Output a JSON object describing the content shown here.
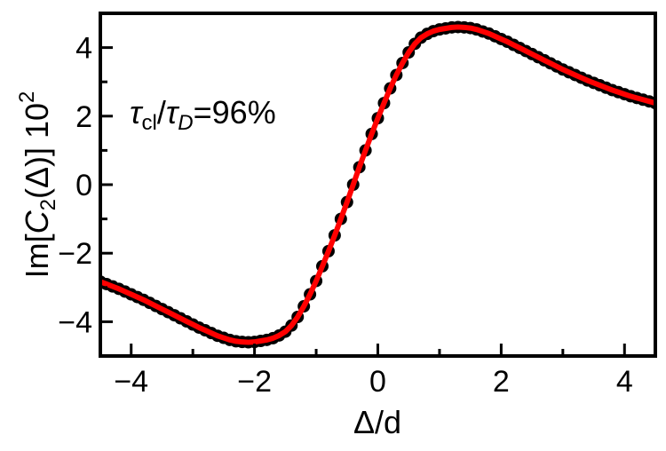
{
  "chart_data": {
    "type": "line",
    "xlabel": "Δ/d",
    "ylabel": {
      "prefix": "Im[",
      "var": "C",
      "sub": "2",
      "arg": "(Δ)] 10",
      "sup": "2"
    },
    "annotation": {
      "t1": "τ",
      "s1": "cl",
      "slash": "/",
      "t2": "τ",
      "s2": "D",
      "rest": "=96%"
    },
    "xlim": [
      -4.5,
      4.5
    ],
    "ylim": [
      -5,
      5
    ],
    "x_ticks": [
      -4,
      -2,
      0,
      2,
      4
    ],
    "x_tick_labels": [
      "−4",
      "−2",
      "0",
      "2",
      "4"
    ],
    "y_ticks": [
      -4,
      -2,
      0,
      2,
      4
    ],
    "y_tick_labels": [
      "−4",
      "−2",
      "0",
      "2",
      "4"
    ],
    "grid": false,
    "colors": {
      "markers": "#000000",
      "fit_line": "#ff0000",
      "axes": "#000000"
    },
    "series": [
      {
        "style": "markers",
        "x": [
          -4.5,
          -4.4,
          -4.3,
          -4.2,
          -4.1,
          -4.0,
          -3.9,
          -3.8,
          -3.7,
          -3.6,
          -3.5,
          -3.4,
          -3.3,
          -3.2,
          -3.1,
          -3.0,
          -2.9,
          -2.8,
          -2.7,
          -2.6,
          -2.5,
          -2.4,
          -2.3,
          -2.2,
          -2.1,
          -2.0,
          -1.9,
          -1.8,
          -1.7,
          -1.6,
          -1.5,
          -1.4,
          -1.3,
          -1.2,
          -1.1,
          -1.0,
          -0.9,
          -0.8,
          -0.7,
          -0.6,
          -0.5,
          -0.4,
          -0.3,
          -0.2,
          -0.1,
          0.0,
          0.1,
          0.2,
          0.3,
          0.4,
          0.5,
          0.6,
          0.7,
          0.8,
          0.9,
          1.0,
          1.1,
          1.2,
          1.3,
          1.4,
          1.5,
          1.6,
          1.7,
          1.8,
          1.9,
          2.0,
          2.1,
          2.2,
          2.3,
          2.4,
          2.5,
          2.6,
          2.7,
          2.8,
          2.9,
          3.0,
          3.1,
          3.2,
          3.3,
          3.4,
          3.5,
          3.6,
          3.7,
          3.8,
          3.9,
          4.0,
          4.1,
          4.2,
          4.3,
          4.4,
          4.5
        ],
        "y": [
          -2.83,
          -2.9,
          -2.97,
          -3.04,
          -3.12,
          -3.2,
          -3.28,
          -3.36,
          -3.45,
          -3.54,
          -3.63,
          -3.72,
          -3.81,
          -3.9,
          -3.99,
          -4.08,
          -4.17,
          -4.25,
          -4.33,
          -4.41,
          -4.47,
          -4.53,
          -4.57,
          -4.59,
          -4.6,
          -4.59,
          -4.56,
          -4.53,
          -4.48,
          -4.4,
          -4.29,
          -4.11,
          -3.86,
          -3.55,
          -3.2,
          -2.81,
          -2.38,
          -1.94,
          -1.48,
          -1.0,
          -0.51,
          -0.0,
          0.51,
          1.0,
          1.48,
          1.94,
          2.38,
          2.81,
          3.2,
          3.55,
          3.86,
          4.11,
          4.29,
          4.4,
          4.48,
          4.53,
          4.56,
          4.59,
          4.6,
          4.59,
          4.57,
          4.53,
          4.47,
          4.41,
          4.33,
          4.25,
          4.17,
          4.08,
          3.99,
          3.9,
          3.81,
          3.72,
          3.63,
          3.54,
          3.45,
          3.36,
          3.28,
          3.2,
          3.12,
          3.04,
          2.97,
          2.9,
          2.83,
          2.76,
          2.7,
          2.64,
          2.58,
          2.53,
          2.48,
          2.43,
          2.38
        ]
      },
      {
        "style": "line",
        "x": [
          -4.5,
          -4.4,
          -4.3,
          -4.2,
          -4.1,
          -4.0,
          -3.9,
          -3.8,
          -3.7,
          -3.6,
          -3.5,
          -3.4,
          -3.3,
          -3.2,
          -3.1,
          -3.0,
          -2.9,
          -2.8,
          -2.7,
          -2.6,
          -2.5,
          -2.4,
          -2.3,
          -2.2,
          -2.1,
          -2.0,
          -1.9,
          -1.8,
          -1.7,
          -1.6,
          -1.5,
          -1.4,
          -1.3,
          -1.2,
          -1.1,
          -1.0,
          -0.9,
          -0.8,
          -0.7,
          -0.6,
          -0.5,
          -0.4,
          -0.3,
          -0.2,
          -0.1,
          0.0,
          0.1,
          0.2,
          0.3,
          0.4,
          0.5,
          0.6,
          0.7,
          0.8,
          0.9,
          1.0,
          1.1,
          1.2,
          1.3,
          1.4,
          1.5,
          1.6,
          1.7,
          1.8,
          1.9,
          2.0,
          2.1,
          2.2,
          2.3,
          2.4,
          2.5,
          2.6,
          2.7,
          2.8,
          2.9,
          3.0,
          3.1,
          3.2,
          3.3,
          3.4,
          3.5,
          3.6,
          3.7,
          3.8,
          3.9,
          4.0,
          4.1,
          4.2,
          4.3,
          4.4,
          4.5
        ],
        "y": [
          -2.83,
          -2.9,
          -2.97,
          -3.04,
          -3.12,
          -3.2,
          -3.28,
          -3.36,
          -3.45,
          -3.54,
          -3.63,
          -3.72,
          -3.81,
          -3.9,
          -3.99,
          -4.08,
          -4.17,
          -4.25,
          -4.33,
          -4.41,
          -4.47,
          -4.53,
          -4.57,
          -4.59,
          -4.6,
          -4.59,
          -4.56,
          -4.53,
          -4.48,
          -4.4,
          -4.29,
          -4.11,
          -3.86,
          -3.55,
          -3.2,
          -2.81,
          -2.38,
          -1.94,
          -1.48,
          -1.0,
          -0.51,
          -0.0,
          0.51,
          1.0,
          1.48,
          1.94,
          2.38,
          2.81,
          3.2,
          3.55,
          3.86,
          4.11,
          4.29,
          4.4,
          4.48,
          4.53,
          4.56,
          4.59,
          4.6,
          4.59,
          4.57,
          4.53,
          4.47,
          4.41,
          4.33,
          4.25,
          4.17,
          4.08,
          3.99,
          3.9,
          3.81,
          3.72,
          3.63,
          3.54,
          3.45,
          3.36,
          3.28,
          3.2,
          3.12,
          3.04,
          2.97,
          2.9,
          2.83,
          2.76,
          2.7,
          2.64,
          2.58,
          2.53,
          2.48,
          2.43,
          2.38
        ]
      }
    ]
  }
}
